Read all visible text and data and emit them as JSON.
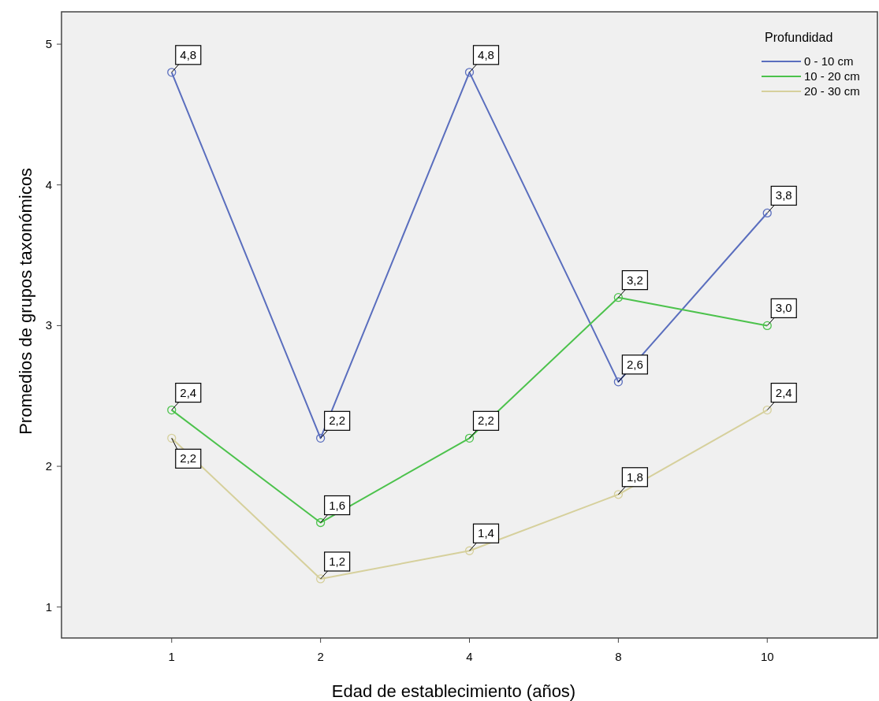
{
  "chart_data": {
    "type": "line",
    "xlabel": "Edad de establecimiento (años)",
    "ylabel": "Promedios de grupos taxonómicos",
    "legend_title": "Profundidad",
    "categories": [
      "1",
      "2",
      "4",
      "8",
      "10"
    ],
    "series": [
      {
        "name": "0 - 10 cm",
        "color": "#5a6ebe",
        "values": [
          4.8,
          2.2,
          4.8,
          2.6,
          3.8
        ],
        "value_labels": [
          "4,8",
          "2,2",
          "4,8",
          "2,6",
          "3,8"
        ]
      },
      {
        "name": "10 - 20 cm",
        "color": "#4cc24c",
        "values": [
          2.4,
          1.6,
          2.2,
          3.2,
          3.0
        ],
        "value_labels": [
          "2,4",
          "1,6",
          "2,2",
          "3,2",
          "3,0"
        ]
      },
      {
        "name": "20 - 30 cm",
        "color": "#d6d09c",
        "values": [
          2.2,
          1.2,
          1.4,
          1.8,
          2.4
        ],
        "value_labels": [
          "2,2",
          "1,2",
          "1,4",
          "1,8",
          "2,4"
        ]
      }
    ],
    "ylim": [
      0.78,
      5.23
    ],
    "yticks": [
      1,
      2,
      3,
      4,
      5
    ],
    "grid": false,
    "legend": "top right",
    "marker": "circle",
    "line_style": "solid"
  }
}
